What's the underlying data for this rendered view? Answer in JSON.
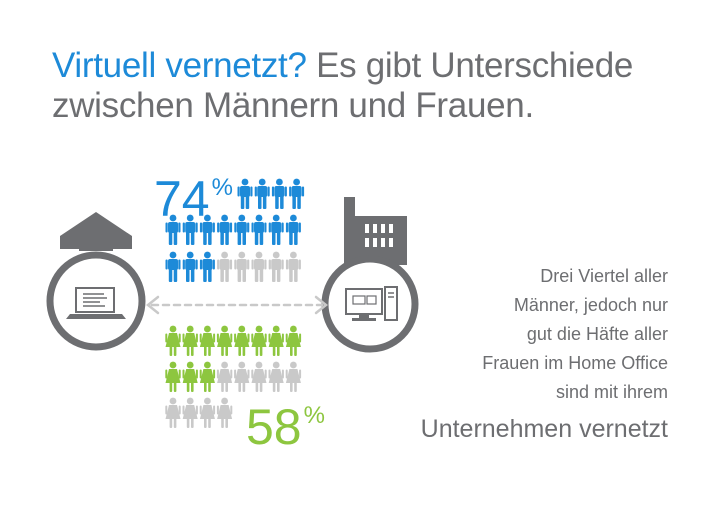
{
  "title": {
    "highlight": "Virtuell vernetzt?",
    "rest_line1": "Es gibt Unterschiede",
    "line2": "zwischen Männern und Frauen."
  },
  "stats": {
    "men": {
      "value": "74",
      "unit": "%",
      "filled": 22,
      "total": 30,
      "color": "#1d8ad8"
    },
    "women": {
      "value": "58",
      "unit": "%",
      "filled": 17,
      "total": 30,
      "color": "#8dc63f"
    },
    "inactive_color": "#c9c9c9"
  },
  "icons": {
    "home": "house-with-laptop-icon",
    "office": "factory-with-computer-icon",
    "link": "double-arrow-icon"
  },
  "description": {
    "lines": [
      "Drei Viertel aller",
      "Männer, jedoch nur",
      "gut die Häfte aller",
      "Frauen im Home Office",
      "sind mit ihrem"
    ],
    "last": "Unternehmen vernetzt"
  }
}
